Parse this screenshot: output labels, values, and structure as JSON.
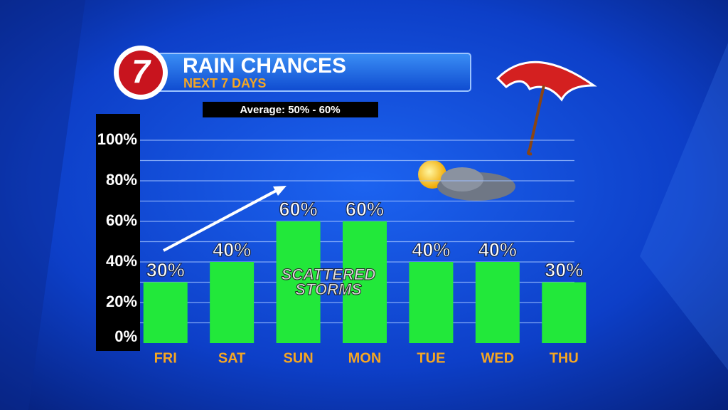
{
  "chart_data": {
    "type": "bar",
    "title": "RAIN CHANCES",
    "subtitle": "NEXT 7 DAYS",
    "logo": "7",
    "annotations": [
      "Average: 50% - 60%",
      "SCATTERED",
      "STORMS"
    ],
    "categories": [
      "FRI",
      "SAT",
      "SUN",
      "MON",
      "TUE",
      "WED",
      "THU"
    ],
    "values": [
      30,
      40,
      60,
      60,
      40,
      40,
      30
    ],
    "value_labels": [
      "30%",
      "40%",
      "60%",
      "60%",
      "40%",
      "40%",
      "30%"
    ],
    "color": "#22e83a",
    "ylim": [
      0,
      100
    ],
    "yticks": [
      {
        "value": 0,
        "label": "0%"
      },
      {
        "value": 20,
        "label": "20%"
      },
      {
        "value": 40,
        "label": "40%"
      },
      {
        "value": 60,
        "label": "60%"
      },
      {
        "value": 80,
        "label": "80%"
      },
      {
        "value": 100,
        "label": "100%"
      }
    ],
    "grid_lines": [
      10,
      20,
      30,
      40,
      50,
      60,
      70,
      80,
      90,
      100
    ],
    "grid": true
  }
}
